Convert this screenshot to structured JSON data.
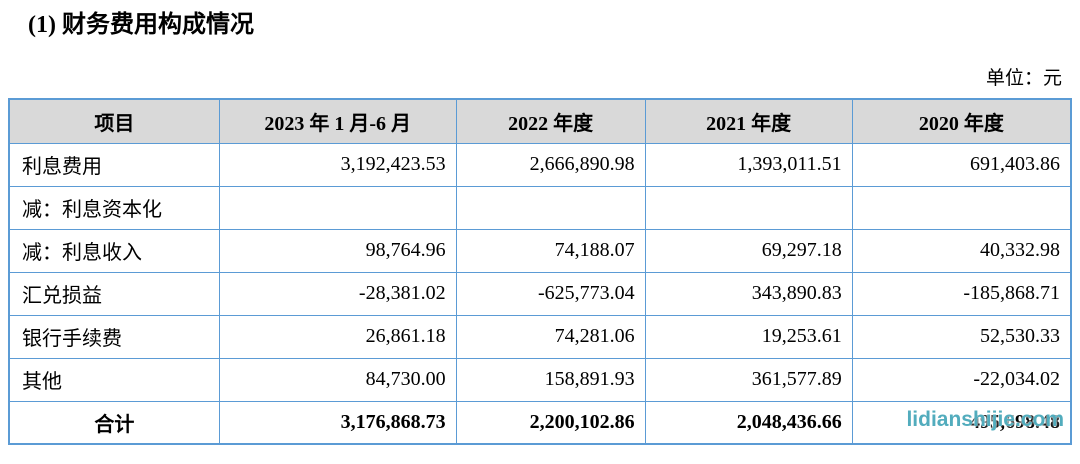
{
  "page": {
    "title": "(1) 财务费用构成情况",
    "unit_label": "单位：元"
  },
  "watermark": {
    "text": "lidianshijie.com",
    "color": "#3aa0b4"
  },
  "table": {
    "colors": {
      "border": "#5b9bd5",
      "header_bg": "#d9d9d9",
      "text": "#000000"
    },
    "columns": [
      "项目",
      "2023 年 1 月-6 月",
      "2022 年度",
      "2021 年度",
      "2020 年度"
    ],
    "rows": [
      {
        "label": "利息费用",
        "values": [
          "3,192,423.53",
          "2,666,890.98",
          "1,393,011.51",
          "691,403.86"
        ],
        "bold": false
      },
      {
        "label": "减：利息资本化",
        "values": [
          "",
          "",
          "",
          ""
        ],
        "bold": false
      },
      {
        "label": "减：利息收入",
        "values": [
          "98,764.96",
          "74,188.07",
          "69,297.18",
          "40,332.98"
        ],
        "bold": false
      },
      {
        "label": "汇兑损益",
        "values": [
          "-28,381.02",
          "-625,773.04",
          "343,890.83",
          "-185,868.71"
        ],
        "bold": false
      },
      {
        "label": "银行手续费",
        "values": [
          "26,861.18",
          "74,281.06",
          "19,253.61",
          "52,530.33"
        ],
        "bold": false
      },
      {
        "label": "其他",
        "values": [
          "84,730.00",
          "158,891.93",
          "361,577.89",
          "-22,034.02"
        ],
        "bold": false
      },
      {
        "label": "合计",
        "values": [
          "3,176,868.73",
          "2,200,102.86",
          "2,048,436.66",
          "495,698.48"
        ],
        "bold": true,
        "watermarked_cell": 3
      }
    ]
  }
}
